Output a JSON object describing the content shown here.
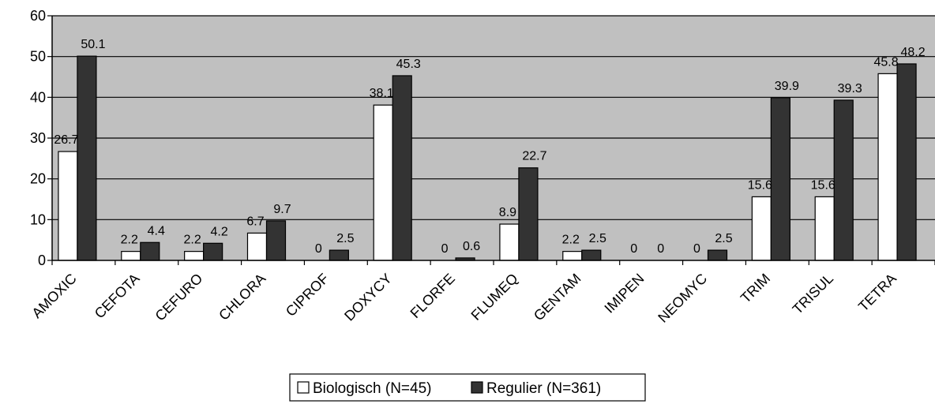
{
  "chart_data": {
    "type": "bar",
    "categories": [
      "AMOXIC",
      "CEFOTA",
      "CEFURO",
      "CHLORA",
      "CIPROF",
      "DOXYCY",
      "FLORFE",
      "FLUMEQ",
      "GENTAM",
      "IMIPEN",
      "NEOMYC",
      "TRIM",
      "TRISUL",
      "TETRA"
    ],
    "series": [
      {
        "name": "Biologisch (N=45)",
        "color": "#ffffff",
        "values": [
          26.7,
          2.2,
          2.2,
          6.7,
          0,
          38.1,
          0,
          8.9,
          2.2,
          0,
          0,
          15.6,
          15.6,
          45.8
        ],
        "labels": [
          "26.7",
          "2.2",
          "2.2",
          "6.7",
          "0",
          "38.1",
          "0",
          "8.9",
          "2.2",
          "0",
          "0",
          "15.6",
          "15.6",
          "45.8"
        ]
      },
      {
        "name": "Regulier (N=361)",
        "color": "#333333",
        "values": [
          50.1,
          4.4,
          4.2,
          9.7,
          2.5,
          45.3,
          0.6,
          22.7,
          2.5,
          0,
          2.5,
          39.9,
          39.3,
          48.2
        ],
        "labels": [
          "50.1",
          "4.4",
          "4.2",
          "9.7",
          "2.5",
          "45.3",
          "0.6",
          "22.7",
          "2.5",
          "0",
          "2.5",
          "39.9",
          "39.3",
          "48.2"
        ]
      }
    ],
    "y_ticks": [
      "0",
      "10",
      "20",
      "30",
      "40",
      "50",
      "60"
    ],
    "ylim": [
      0,
      60
    ],
    "grid": true,
    "plot_background": "#c0c0c0",
    "legend_position": "bottom-center",
    "title": "",
    "xlabel": "",
    "ylabel": ""
  }
}
